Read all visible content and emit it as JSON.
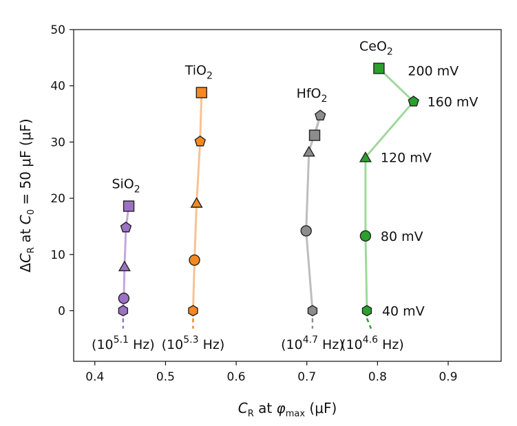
{
  "chart_data": {
    "type": "line",
    "xlabel": "C_R at φ_max (μF)",
    "ylabel": "ΔC_R at C_0 = 50 μF (μF)",
    "xlim": [
      0.37,
      0.975
    ],
    "ylim": [
      -9,
      50
    ],
    "xticks": [
      "0.4",
      "0.5",
      "0.6",
      "0.7",
      "0.8",
      "0.9"
    ],
    "yticks": [
      "0",
      "10",
      "20",
      "30",
      "40",
      "50"
    ],
    "grid": false,
    "voltage_labels": [
      "40 mV",
      "80 mV",
      "120 mV",
      "160 mV",
      "200 mV"
    ],
    "marker_order": [
      "hexagon",
      "circle",
      "triangle",
      "pentagon",
      "square"
    ],
    "series": [
      {
        "name": "SiO2",
        "name_base": "SiO",
        "name_sub": "2",
        "color": "#9b72c4",
        "line_color": "#c3a8de",
        "freq_base": "(10",
        "freq_exp": "5.1",
        "freq_unit": " Hz)",
        "x": [
          0.44,
          0.441,
          0.442,
          0.444,
          0.448
        ],
        "y": [
          0.0,
          2.2,
          7.9,
          14.8,
          18.6
        ]
      },
      {
        "name": "TiO2",
        "name_base": "TiO",
        "name_sub": "2",
        "color": "#f5891f",
        "line_color": "#f8c293",
        "freq_base": "(10",
        "freq_exp": "5.3",
        "freq_unit": " Hz)",
        "x": [
          0.539,
          0.541,
          0.544,
          0.549,
          0.551
        ],
        "y": [
          0.0,
          9.0,
          19.2,
          30.1,
          38.8
        ]
      },
      {
        "name": "HfO2",
        "name_base": "HfO",
        "name_sub": "2",
        "color": "#8c8c8c",
        "line_color": "#bdbdbd",
        "freq_base": "(10",
        "freq_exp": "4.7",
        "freq_unit": " Hz)",
        "x": [
          0.708,
          0.699,
          0.703,
          0.719,
          0.711
        ],
        "y": [
          0.0,
          14.2,
          28.3,
          34.7,
          31.2
        ]
      },
      {
        "name": "CeO2",
        "name_base": "CeO",
        "name_sub": "2",
        "color": "#2ca02c",
        "line_color": "#9fd89a",
        "freq_base": "(10",
        "freq_exp": "4.6",
        "freq_unit": " Hz)",
        "x": [
          0.785,
          0.783,
          0.783,
          0.851,
          0.802
        ],
        "y": [
          0.0,
          13.3,
          27.3,
          37.2,
          43.1
        ]
      }
    ]
  }
}
